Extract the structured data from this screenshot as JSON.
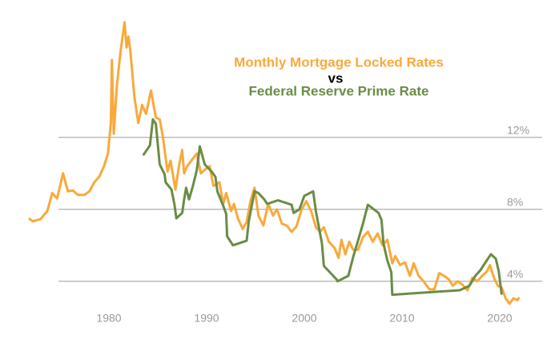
{
  "chart_data": {
    "type": "line",
    "connector": "vs",
    "xlim": [
      1971,
      2024
    ],
    "xticks": [
      1980,
      1990,
      2000,
      2010,
      2020
    ],
    "ylim": [
      1.5,
      19.5
    ],
    "yticks": [
      {
        "value": 4,
        "label": "4%"
      },
      {
        "value": 8,
        "label": "8%"
      },
      {
        "value": 12,
        "label": "12%"
      }
    ],
    "grid": true,
    "series": [
      {
        "name": "Monthly Mortgage Locked Rates",
        "color": "#f9a93b",
        "x": [
          1971.8,
          1972.2,
          1973,
          1973.7,
          1974.2,
          1974.7,
          1975.3,
          1975.8,
          1976.3,
          1976.8,
          1977.5,
          1978,
          1978.5,
          1979,
          1979.5,
          1979.9,
          1980.2,
          1980.3,
          1980.5,
          1980.8,
          1981.2,
          1981.6,
          1981.8,
          1982,
          1982.2,
          1982.6,
          1983,
          1983.4,
          1983.8,
          1984.3,
          1984.8,
          1985.2,
          1985.5,
          1986,
          1986.3,
          1986.8,
          1987.2,
          1987.5,
          1987.7,
          1988,
          1988.5,
          1989,
          1989.4,
          1989.8,
          1990.3,
          1990.7,
          1991.3,
          1991.7,
          1992,
          1992.5,
          1992.8,
          1993.2,
          1993.7,
          1994.1,
          1994.5,
          1994.9,
          1995.3,
          1995.8,
          1996.3,
          1996.8,
          1997.2,
          1997.7,
          1998.2,
          1998.7,
          1999.2,
          1999.7,
          2000.2,
          2000.7,
          2001.2,
          2001.6,
          2002,
          2002.5,
          2003.1,
          2003.5,
          2003.8,
          2004.2,
          2004.6,
          2005,
          2005.5,
          2006,
          2006.5,
          2007,
          2007.5,
          2008,
          2008.5,
          2009,
          2009.3,
          2009.8,
          2010.3,
          2010.8,
          2011.2,
          2011.7,
          2012.2,
          2012.8,
          2013.3,
          2013.8,
          2014.3,
          2014.8,
          2015.2,
          2015.7,
          2016.2,
          2016.7,
          2017.2,
          2017.7,
          2018.2,
          2018.7,
          2019,
          2019.4,
          2019.8,
          2020.2,
          2020.6,
          2021,
          2021.4,
          2021.8,
          2022
        ],
        "values": [
          7.5,
          7.33,
          7.45,
          7.9,
          8.9,
          8.6,
          10.0,
          9.0,
          9.05,
          8.8,
          8.8,
          9.0,
          9.5,
          9.8,
          10.4,
          11.1,
          12.8,
          16.3,
          12.2,
          14.8,
          16.8,
          18.4,
          17.0,
          17.6,
          16.8,
          14.3,
          12.8,
          13.8,
          13.3,
          14.6,
          13.1,
          13.0,
          12.1,
          10.1,
          10.7,
          9.1,
          10.5,
          11.3,
          10.0,
          10.4,
          10.75,
          11.1,
          10.0,
          10.2,
          10.4,
          9.3,
          9.5,
          8.3,
          8.9,
          7.9,
          8.3,
          7.5,
          6.9,
          7.3,
          8.5,
          9.2,
          7.65,
          7.1,
          8.3,
          7.65,
          8.0,
          7.2,
          7.1,
          6.75,
          7.05,
          7.95,
          8.45,
          7.9,
          7.0,
          6.75,
          7.0,
          6.2,
          5.85,
          5.3,
          6.3,
          5.5,
          6.2,
          5.75,
          5.75,
          6.45,
          6.75,
          6.2,
          6.65,
          6.0,
          6.3,
          5.0,
          5.4,
          4.9,
          5.05,
          4.3,
          5.0,
          4.3,
          4.0,
          3.55,
          3.55,
          4.45,
          4.3,
          4.1,
          3.75,
          4.0,
          3.8,
          3.5,
          4.2,
          4.0,
          4.3,
          4.55,
          4.9,
          4.2,
          3.75,
          3.65,
          3.05,
          2.75,
          3.05,
          2.95,
          3.1
        ]
      },
      {
        "name": "Federal Reserve Prime Rate",
        "color": "#6a8c45",
        "x": [
          1983.5,
          1984.2,
          1984.5,
          1984.8,
          1985.2,
          1985.7,
          1985.8,
          1986.4,
          1986.7,
          1986.9,
          1987.5,
          1987.7,
          1987.9,
          1988.2,
          1988.6,
          1989,
          1989.3,
          1989.8,
          1990.5,
          1990.9,
          1991.1,
          1991.7,
          1992,
          1992.1,
          1992.7,
          1994.1,
          1994.3,
          1994.9,
          1995.3,
          1995.9,
          1996.2,
          1997.3,
          1998.7,
          1998.9,
          1999.5,
          2000,
          2000.9,
          2001.2,
          2001.8,
          2002,
          2003.3,
          2003.4,
          2004.5,
          2005,
          2006,
          2006.5,
          2007.6,
          2007.9,
          2008.1,
          2008.5,
          2008.9,
          2009,
          2015.9,
          2016.9,
          2017.5,
          2018,
          2018.6,
          2019.1,
          2019.6,
          2019.9,
          2020.2
        ],
        "values": [
          11.0,
          11.55,
          13.0,
          12.75,
          10.5,
          9.95,
          9.5,
          9.1,
          8.3,
          7.5,
          7.8,
          8.55,
          9.2,
          8.55,
          9.3,
          10.2,
          11.5,
          10.5,
          10.1,
          9.8,
          9.0,
          8.2,
          7.75,
          6.5,
          6.0,
          6.25,
          7.3,
          9.0,
          8.9,
          8.55,
          8.3,
          8.5,
          8.25,
          7.8,
          8.0,
          8.75,
          9.0,
          7.85,
          6.1,
          4.85,
          4.1,
          4.0,
          4.3,
          5.35,
          7.2,
          8.25,
          7.8,
          7.4,
          6.1,
          5.15,
          4.5,
          3.25,
          3.5,
          3.75,
          4.3,
          4.6,
          5.1,
          5.5,
          5.25,
          4.55,
          3.25
        ]
      }
    ]
  }
}
